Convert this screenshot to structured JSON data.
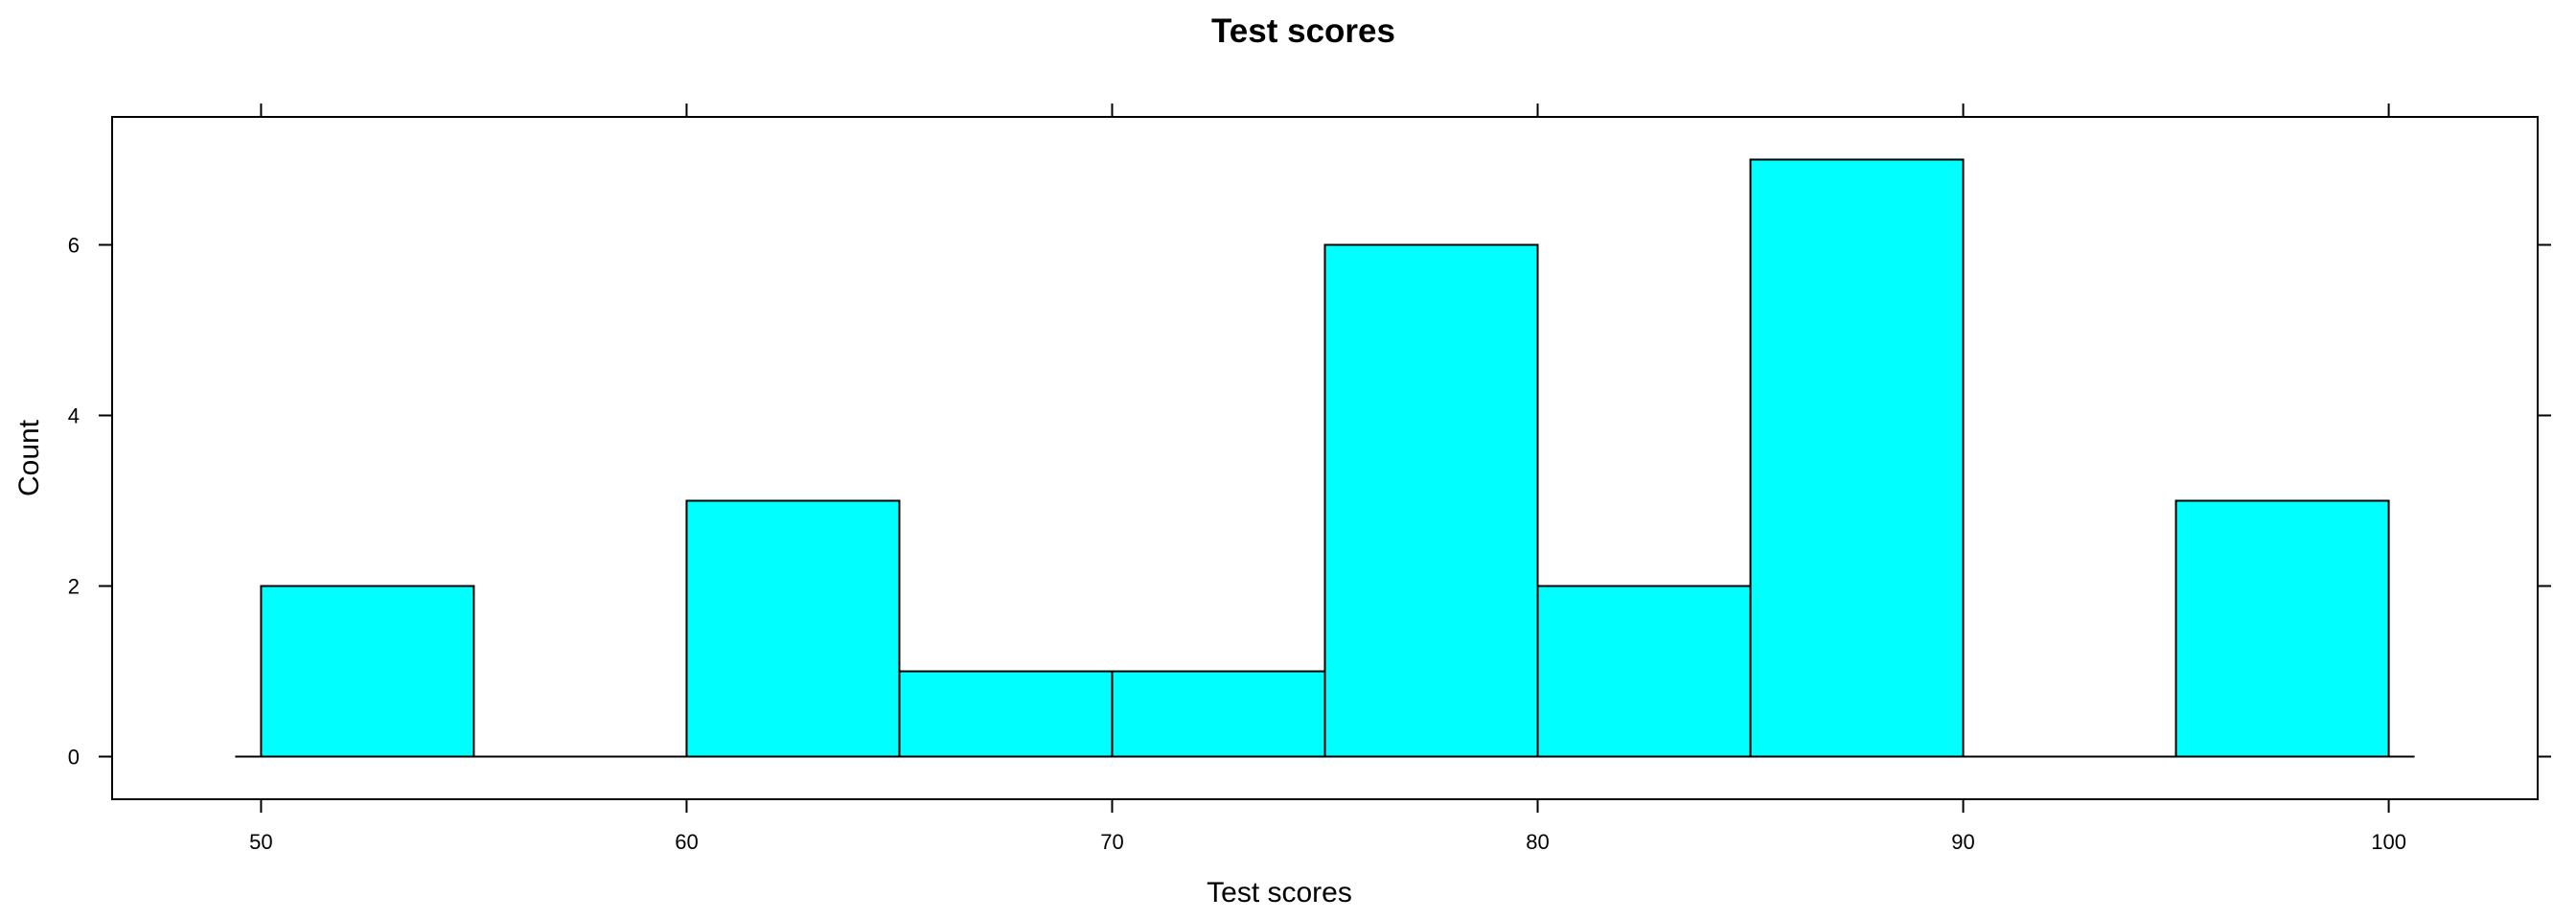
{
  "chart_data": {
    "type": "bar",
    "subtype": "histogram",
    "title": "Test scores",
    "xlabel": "Test scores",
    "ylabel": "Count",
    "bins": [
      {
        "start": 50,
        "end": 55,
        "count": 2
      },
      {
        "start": 55,
        "end": 60,
        "count": 0
      },
      {
        "start": 60,
        "end": 65,
        "count": 3
      },
      {
        "start": 65,
        "end": 70,
        "count": 1
      },
      {
        "start": 70,
        "end": 75,
        "count": 1
      },
      {
        "start": 75,
        "end": 80,
        "count": 6
      },
      {
        "start": 80,
        "end": 85,
        "count": 2
      },
      {
        "start": 85,
        "end": 90,
        "count": 7
      },
      {
        "start": 90,
        "end": 95,
        "count": 0
      },
      {
        "start": 95,
        "end": 100,
        "count": 3
      }
    ],
    "x_ticks": [
      50,
      60,
      70,
      80,
      90,
      100
    ],
    "y_ticks": [
      0,
      2,
      4,
      6
    ],
    "xlim": [
      46.5,
      103.5
    ],
    "ylim": [
      -0.5,
      7.5
    ],
    "grid": false,
    "bar_color": "#00FFFF",
    "bar_edge_color": "#000000"
  }
}
